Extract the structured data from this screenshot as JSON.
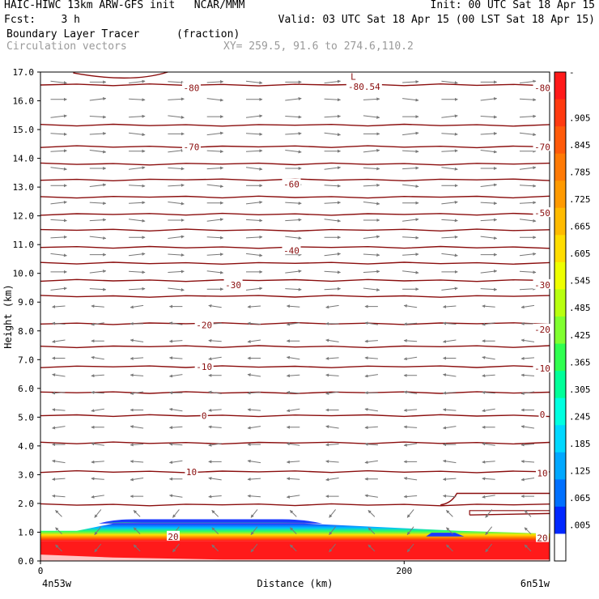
{
  "header": {
    "line1_left": "HAIC-HIWC 13km ARW-GFS init   NCAR/MMM",
    "line1_right": "Init: 00 UTC Sat 18 Apr 15",
    "line2_left": "Fcst:    3 h",
    "line2_right": "Valid: 03 UTC Sat 18 Apr 15 (00 LST Sat 18 Apr 15)",
    "line3_left": "Boundary Layer Tracer",
    "line3_mid": "(fraction)",
    "line4_left": "Circulation vectors",
    "line4_mid": "XY= 259.5, 91.6 to 274.6,110.2"
  },
  "chart_data": {
    "type": "cross-section",
    "ylabel": "Height (km)",
    "xlabel": "Distance (km)",
    "ylim": [
      0,
      17
    ],
    "xlim": [
      0,
      280
    ],
    "yticks": [
      "0.0",
      "1.0",
      "2.0",
      "3.0",
      "4.0",
      "5.0",
      "6.0",
      "7.0",
      "8.0",
      "9.0",
      "10.0",
      "11.0",
      "12.0",
      "13.0",
      "14.0",
      "15.0",
      "16.0",
      "17.0"
    ],
    "xticks": [
      {
        "value": 0,
        "label": "0"
      },
      {
        "value": 200,
        "label": "200"
      }
    ],
    "x_endpoints": {
      "left": "4n53w",
      "right": "6n51w"
    },
    "tracer_fill": {
      "description": "Boundary layer tracer fraction near surface",
      "saturated_top_km": 0.7,
      "bump_top_km": 1.45,
      "bump_range_km": [
        40,
        145
      ]
    },
    "contour_labels": [
      {
        "x": 83,
        "y": 16.45,
        "text": "-80"
      },
      {
        "x": 178,
        "y": 16.5,
        "text": "-80.54"
      },
      {
        "x": 276,
        "y": 16.45,
        "text": "-80"
      },
      {
        "x": 83,
        "y": 14.4,
        "text": "-70"
      },
      {
        "x": 276,
        "y": 14.4,
        "text": "-70"
      },
      {
        "x": 138,
        "y": 13.1,
        "text": "-60"
      },
      {
        "x": 276,
        "y": 12.1,
        "text": "-50"
      },
      {
        "x": 138,
        "y": 10.8,
        "text": "-40"
      },
      {
        "x": 106,
        "y": 9.6,
        "text": "-30"
      },
      {
        "x": 276,
        "y": 9.6,
        "text": "-30"
      },
      {
        "x": 90,
        "y": 8.2,
        "text": "-20"
      },
      {
        "x": 276,
        "y": 8.05,
        "text": "-20"
      },
      {
        "x": 90,
        "y": 6.75,
        "text": "-10"
      },
      {
        "x": 276,
        "y": 6.7,
        "text": "-10"
      },
      {
        "x": 90,
        "y": 5.05,
        "text": "0"
      },
      {
        "x": 276,
        "y": 5.1,
        "text": "0"
      },
      {
        "x": 83,
        "y": 3.1,
        "text": "10"
      },
      {
        "x": 276,
        "y": 3.05,
        "text": "10"
      },
      {
        "x": 73,
        "y": 0.85,
        "text": "20"
      },
      {
        "x": 276,
        "y": 0.8,
        "text": "20"
      }
    ],
    "low_marker": {
      "x": 172,
      "y": 16.85,
      "text": "L"
    },
    "isotherm_levels_km": [
      16.55,
      15.15,
      14.4,
      13.8,
      13.25,
      12.65,
      12.05,
      11.5,
      10.9,
      10.35,
      9.75,
      9.2,
      8.25,
      7.45,
      6.75,
      5.85,
      5.05,
      4.1,
      3.1,
      1.95
    ],
    "colorbar": {
      "labels": [
        "-",
        ".905",
        ".845",
        ".785",
        ".725",
        ".665",
        ".605",
        ".545",
        ".485",
        ".425",
        ".365",
        ".305",
        ".245",
        ".185",
        ".125",
        ".065",
        ".005"
      ],
      "colors": [
        "#ff1a1a",
        "#ff3a10",
        "#ff5a0a",
        "#ff7a05",
        "#ff9a00",
        "#ffbb00",
        "#ffdd00",
        "#eeff00",
        "#b8ff10",
        "#80ff30",
        "#30ff50",
        "#00ff99",
        "#00ffe0",
        "#00d8ff",
        "#00a8ff",
        "#0070ff",
        "#0028ff",
        "#ffffff"
      ]
    }
  }
}
